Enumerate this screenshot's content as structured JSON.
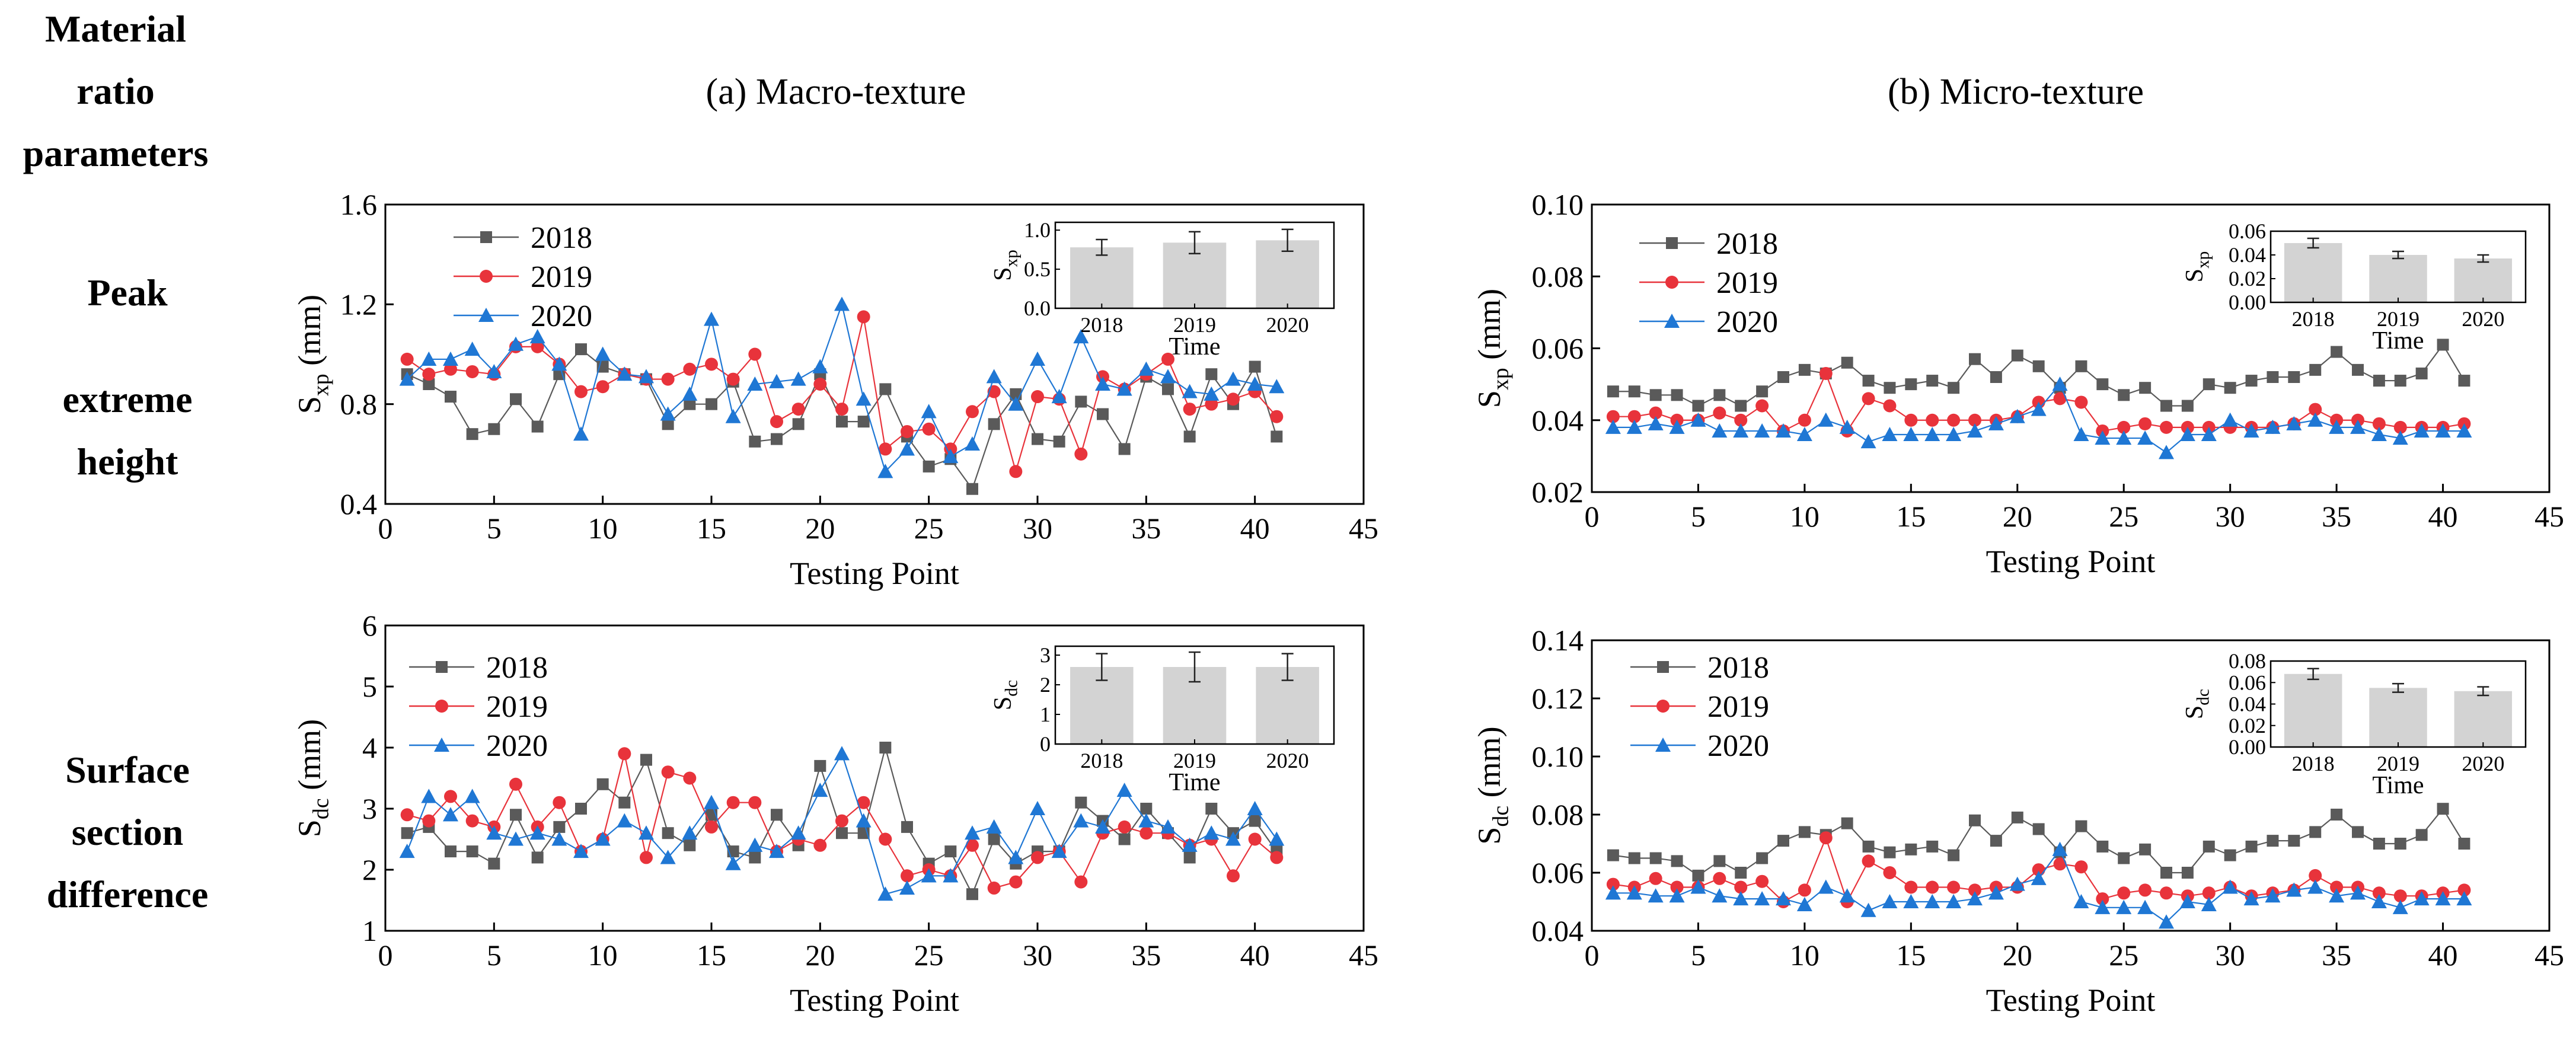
{
  "figure": {
    "header_title_lines": [
      "Material",
      "ratio",
      "parameters"
    ],
    "column_titles": [
      "(a) Macro-texture",
      "(b) Micro-texture"
    ],
    "row_labels": [
      [
        "Peak",
        "extreme",
        "height"
      ],
      [
        "Surface",
        "section",
        "difference"
      ]
    ]
  },
  "colors": {
    "s2018": "#5a5a5a",
    "s2019": "#e8333b",
    "s2020": "#1f77d4",
    "inset_bar": "#d3d3d3",
    "axis": "#000000"
  },
  "chart_data": [
    {
      "id": "macro-sxp",
      "type": "line",
      "ylabel_base": "S",
      "ylabel_sub": "xp",
      "ylabel_unit": " (mm)",
      "xlabel": "Testing Point",
      "xlim": [
        0,
        45
      ],
      "ylim": [
        0.4,
        1.6
      ],
      "xticks": [
        0,
        5,
        10,
        15,
        20,
        25,
        30,
        35,
        40,
        45
      ],
      "yticks": [
        0.4,
        0.8,
        1.2,
        1.6
      ],
      "ytick_labels": [
        "0.4",
        "0.8",
        "1.2",
        "1.6"
      ],
      "x": [
        1,
        2,
        3,
        4,
        5,
        6,
        7,
        8,
        9,
        10,
        11,
        12,
        13,
        14,
        15,
        16,
        17,
        18,
        19,
        20,
        21,
        22,
        23,
        24,
        25,
        26,
        27,
        28,
        29,
        30,
        31,
        32,
        33,
        34,
        35,
        36,
        37,
        38,
        39,
        40,
        41
      ],
      "series": [
        {
          "name": "2018",
          "marker": "square",
          "values": [
            0.92,
            0.88,
            0.83,
            0.68,
            0.7,
            0.82,
            0.71,
            0.92,
            1.02,
            0.95,
            0.92,
            0.9,
            0.72,
            0.8,
            0.8,
            0.89,
            0.65,
            0.66,
            0.72,
            0.92,
            0.73,
            0.73,
            0.86,
            0.67,
            0.55,
            0.58,
            0.46,
            0.72,
            0.84,
            0.66,
            0.65,
            0.81,
            0.76,
            0.62,
            0.91,
            0.86,
            0.67,
            0.92,
            0.8,
            0.95,
            0.67
          ]
        },
        {
          "name": "2019",
          "marker": "circle",
          "values": [
            0.98,
            0.92,
            0.94,
            0.93,
            0.92,
            1.03,
            1.03,
            0.96,
            0.85,
            0.87,
            0.92,
            0.9,
            0.9,
            0.94,
            0.96,
            0.9,
            1.0,
            0.73,
            0.78,
            0.88,
            0.78,
            1.15,
            0.62,
            0.69,
            0.7,
            0.62,
            0.77,
            0.85,
            0.53,
            0.83,
            0.82,
            0.6,
            0.91,
            0.86,
            0.92,
            0.98,
            0.78,
            0.8,
            0.82,
            0.85,
            0.75
          ]
        },
        {
          "name": "2020",
          "marker": "triangle",
          "values": [
            0.9,
            0.98,
            0.98,
            1.02,
            0.93,
            1.04,
            1.07,
            0.96,
            0.68,
            1.0,
            0.92,
            0.91,
            0.76,
            0.84,
            1.14,
            0.75,
            0.88,
            0.89,
            0.9,
            0.95,
            1.2,
            0.82,
            0.53,
            0.62,
            0.77,
            0.59,
            0.64,
            0.91,
            0.8,
            0.98,
            0.83,
            1.07,
            0.88,
            0.86,
            0.94,
            0.91,
            0.85,
            0.84,
            0.9,
            0.88,
            0.87
          ]
        }
      ],
      "legend": {
        "position": "top-left",
        "entries": [
          "2018",
          "2019",
          "2020"
        ]
      },
      "inset": {
        "type": "bar",
        "categories": [
          "2018",
          "2019",
          "2020"
        ],
        "values": [
          0.78,
          0.84,
          0.87
        ],
        "errors": [
          0.1,
          0.14,
          0.14
        ],
        "ylim": [
          0,
          1.1
        ],
        "yticks": [
          0.0,
          0.5,
          1.0
        ],
        "ytick_labels": [
          "0.0",
          "0.5",
          "1.0"
        ],
        "ylabel_base": "S",
        "ylabel_sub": "xp",
        "xlabel": "Time"
      }
    },
    {
      "id": "micro-sxp",
      "type": "line",
      "ylabel_base": "S",
      "ylabel_sub": "xp",
      "ylabel_unit": " (mm)",
      "xlabel": "Testing Point",
      "xlim": [
        0,
        45
      ],
      "ylim": [
        0.02,
        0.1
      ],
      "xticks": [
        0,
        5,
        10,
        15,
        20,
        25,
        30,
        35,
        40,
        45
      ],
      "yticks": [
        0.02,
        0.04,
        0.06,
        0.08,
        0.1
      ],
      "ytick_labels": [
        "0.02",
        "0.04",
        "0.06",
        "0.08",
        "0.10"
      ],
      "x": [
        1,
        2,
        3,
        4,
        5,
        6,
        7,
        8,
        9,
        10,
        11,
        12,
        13,
        14,
        15,
        16,
        17,
        18,
        19,
        20,
        21,
        22,
        23,
        24,
        25,
        26,
        27,
        28,
        29,
        30,
        31,
        32,
        33,
        34,
        35,
        36,
        37,
        38,
        39,
        40,
        41
      ],
      "series": [
        {
          "name": "2018",
          "marker": "square",
          "values": [
            0.048,
            0.048,
            0.047,
            0.047,
            0.044,
            0.047,
            0.044,
            0.048,
            0.052,
            0.054,
            0.053,
            0.056,
            0.051,
            0.049,
            0.05,
            0.051,
            0.049,
            0.057,
            0.052,
            0.058,
            0.055,
            0.049,
            0.055,
            0.05,
            0.047,
            0.049,
            0.044,
            0.044,
            0.05,
            0.049,
            0.051,
            0.052,
            0.052,
            0.054,
            0.059,
            0.054,
            0.051,
            0.051,
            0.053,
            0.061,
            0.051
          ]
        },
        {
          "name": "2019",
          "marker": "circle",
          "values": [
            0.041,
            0.041,
            0.042,
            0.04,
            0.04,
            0.042,
            0.04,
            0.044,
            0.037,
            0.04,
            0.053,
            0.037,
            0.046,
            0.044,
            0.04,
            0.04,
            0.04,
            0.04,
            0.04,
            0.041,
            0.045,
            0.046,
            0.045,
            0.037,
            0.038,
            0.039,
            0.038,
            0.038,
            0.038,
            0.038,
            0.038,
            0.038,
            0.039,
            0.043,
            0.04,
            0.04,
            0.039,
            0.038,
            0.038,
            0.038,
            0.039
          ]
        },
        {
          "name": "2020",
          "marker": "triangle",
          "values": [
            0.038,
            0.038,
            0.039,
            0.038,
            0.04,
            0.037,
            0.037,
            0.037,
            0.037,
            0.036,
            0.04,
            0.038,
            0.034,
            0.036,
            0.036,
            0.036,
            0.036,
            0.037,
            0.039,
            0.041,
            0.043,
            0.05,
            0.036,
            0.035,
            0.035,
            0.035,
            0.031,
            0.036,
            0.036,
            0.04,
            0.037,
            0.038,
            0.039,
            0.04,
            0.038,
            0.038,
            0.036,
            0.035,
            0.037,
            0.037,
            0.037
          ]
        }
      ],
      "legend": {
        "position": "top-left",
        "entries": [
          "2018",
          "2019",
          "2020"
        ]
      },
      "inset": {
        "type": "bar",
        "categories": [
          "2018",
          "2019",
          "2020"
        ],
        "values": [
          0.05,
          0.04,
          0.037
        ],
        "errors": [
          0.004,
          0.003,
          0.003
        ],
        "ylim": [
          0,
          0.06
        ],
        "yticks": [
          0.0,
          0.02,
          0.04,
          0.06
        ],
        "ytick_labels": [
          "0.00",
          "0.02",
          "0.04",
          "0.06"
        ],
        "ylabel_base": "S",
        "ylabel_sub": "xp",
        "xlabel": "Time"
      }
    },
    {
      "id": "macro-sdc",
      "type": "line",
      "ylabel_base": "S",
      "ylabel_sub": "dc",
      "ylabel_unit": " (mm)",
      "xlabel": "Testing Point",
      "xlim": [
        0,
        45
      ],
      "ylim": [
        1,
        6
      ],
      "xticks": [
        0,
        5,
        10,
        15,
        20,
        25,
        30,
        35,
        40,
        45
      ],
      "yticks": [
        1,
        2,
        3,
        4,
        5,
        6
      ],
      "ytick_labels": [
        "1",
        "2",
        "3",
        "4",
        "5",
        "6"
      ],
      "x": [
        1,
        2,
        3,
        4,
        5,
        6,
        7,
        8,
        9,
        10,
        11,
        12,
        13,
        14,
        15,
        16,
        17,
        18,
        19,
        20,
        21,
        22,
        23,
        24,
        25,
        26,
        27,
        28,
        29,
        30,
        31,
        32,
        33,
        34,
        35,
        36,
        37,
        38,
        39,
        40,
        41
      ],
      "series": [
        {
          "name": "2018",
          "marker": "square",
          "values": [
            2.6,
            2.7,
            2.3,
            2.3,
            2.1,
            2.9,
            2.2,
            2.7,
            3.0,
            3.4,
            3.1,
            3.8,
            2.6,
            2.4,
            2.9,
            2.3,
            2.2,
            2.9,
            2.4,
            3.7,
            2.6,
            2.6,
            4.0,
            2.7,
            2.1,
            2.3,
            1.6,
            2.5,
            2.1,
            2.3,
            2.3,
            3.1,
            2.8,
            2.5,
            3.0,
            2.6,
            2.2,
            3.0,
            2.6,
            2.8,
            2.3
          ]
        },
        {
          "name": "2019",
          "marker": "circle",
          "values": [
            2.9,
            2.8,
            3.2,
            2.8,
            2.7,
            3.4,
            2.7,
            3.1,
            2.3,
            2.5,
            3.9,
            2.2,
            3.6,
            3.5,
            2.7,
            3.1,
            3.1,
            2.3,
            2.5,
            2.4,
            2.8,
            3.1,
            2.5,
            1.9,
            2.0,
            1.9,
            2.4,
            1.7,
            1.8,
            2.2,
            2.3,
            1.8,
            2.6,
            2.7,
            2.6,
            2.6,
            2.4,
            2.5,
            1.9,
            2.5,
            2.2
          ]
        },
        {
          "name": "2020",
          "marker": "triangle",
          "values": [
            2.3,
            3.2,
            2.9,
            3.2,
            2.6,
            2.5,
            2.6,
            2.5,
            2.3,
            2.5,
            2.8,
            2.6,
            2.2,
            2.6,
            3.1,
            2.1,
            2.4,
            2.3,
            2.6,
            3.3,
            3.9,
            2.8,
            1.6,
            1.7,
            1.9,
            1.9,
            2.6,
            2.7,
            2.2,
            3.0,
            2.3,
            2.8,
            2.7,
            3.3,
            2.8,
            2.7,
            2.4,
            2.6,
            2.5,
            3.0,
            2.5
          ]
        }
      ],
      "legend": {
        "position": "top-left",
        "entries": [
          "2018",
          "2019",
          "2020"
        ]
      },
      "inset": {
        "type": "bar",
        "categories": [
          "2018",
          "2019",
          "2020"
        ],
        "values": [
          2.6,
          2.6,
          2.6
        ],
        "errors": [
          0.45,
          0.5,
          0.45
        ],
        "ylim": [
          0,
          3.3
        ],
        "yticks": [
          0,
          1,
          2,
          3
        ],
        "ytick_labels": [
          "0",
          "1",
          "2",
          "3"
        ],
        "ylabel_base": "S",
        "ylabel_sub": "dc",
        "xlabel": "Time"
      }
    },
    {
      "id": "micro-sdc",
      "type": "line",
      "ylabel_base": "S",
      "ylabel_sub": "dc",
      "ylabel_unit": " (mm)",
      "xlabel": "Testing Point",
      "xlim": [
        0,
        45
      ],
      "ylim": [
        0.04,
        0.14
      ],
      "xticks": [
        0,
        5,
        10,
        15,
        20,
        25,
        30,
        35,
        40,
        45
      ],
      "yticks": [
        0.04,
        0.06,
        0.08,
        0.1,
        0.12,
        0.14
      ],
      "ytick_labels": [
        "0.04",
        "0.06",
        "0.08",
        "0.10",
        "0.12",
        "0.14"
      ],
      "x": [
        1,
        2,
        3,
        4,
        5,
        6,
        7,
        8,
        9,
        10,
        11,
        12,
        13,
        14,
        15,
        16,
        17,
        18,
        19,
        20,
        21,
        22,
        23,
        24,
        25,
        26,
        27,
        28,
        29,
        30,
        31,
        32,
        33,
        34,
        35,
        36,
        37,
        38,
        39,
        40,
        41
      ],
      "series": [
        {
          "name": "2018",
          "marker": "square",
          "values": [
            0.066,
            0.065,
            0.065,
            0.064,
            0.059,
            0.064,
            0.06,
            0.065,
            0.071,
            0.074,
            0.073,
            0.077,
            0.069,
            0.067,
            0.068,
            0.069,
            0.066,
            0.078,
            0.071,
            0.079,
            0.075,
            0.067,
            0.076,
            0.069,
            0.065,
            0.068,
            0.06,
            0.06,
            0.069,
            0.066,
            0.069,
            0.071,
            0.071,
            0.074,
            0.08,
            0.074,
            0.07,
            0.07,
            0.073,
            0.082,
            0.07
          ]
        },
        {
          "name": "2019",
          "marker": "circle",
          "values": [
            0.056,
            0.055,
            0.058,
            0.055,
            0.055,
            0.058,
            0.055,
            0.057,
            0.05,
            0.054,
            0.072,
            0.05,
            0.064,
            0.06,
            0.055,
            0.055,
            0.055,
            0.054,
            0.055,
            0.055,
            0.061,
            0.063,
            0.062,
            0.051,
            0.053,
            0.054,
            0.053,
            0.052,
            0.053,
            0.055,
            0.052,
            0.053,
            0.054,
            0.059,
            0.055,
            0.055,
            0.053,
            0.052,
            0.052,
            0.053,
            0.054
          ]
        },
        {
          "name": "2020",
          "marker": "triangle",
          "values": [
            0.053,
            0.053,
            0.052,
            0.052,
            0.055,
            0.052,
            0.051,
            0.051,
            0.051,
            0.049,
            0.055,
            0.052,
            0.047,
            0.05,
            0.05,
            0.05,
            0.05,
            0.051,
            0.053,
            0.056,
            0.058,
            0.068,
            0.05,
            0.048,
            0.048,
            0.048,
            0.043,
            0.05,
            0.049,
            0.055,
            0.051,
            0.052,
            0.054,
            0.055,
            0.052,
            0.053,
            0.05,
            0.048,
            0.051,
            0.051,
            0.051
          ]
        }
      ],
      "legend": {
        "position": "top-left",
        "entries": [
          "2018",
          "2019",
          "2020"
        ]
      },
      "inset": {
        "type": "bar",
        "categories": [
          "2018",
          "2019",
          "2020"
        ],
        "values": [
          0.068,
          0.055,
          0.052
        ],
        "errors": [
          0.005,
          0.004,
          0.004
        ],
        "ylim": [
          0,
          0.08
        ],
        "yticks": [
          0.0,
          0.02,
          0.04,
          0.06,
          0.08
        ],
        "ytick_labels": [
          "0.00",
          "0.02",
          "0.04",
          "0.06",
          "0.08"
        ],
        "ylabel_base": "S",
        "ylabel_sub": "dc",
        "xlabel": "Time"
      }
    }
  ]
}
